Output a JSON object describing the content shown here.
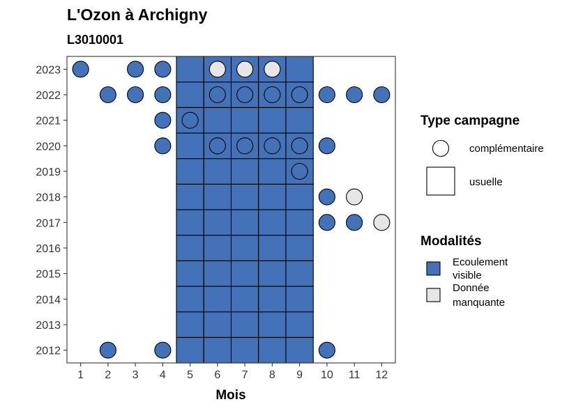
{
  "chart_data": {
    "type": "tile-dot",
    "title": "L'Ozon à Archigny",
    "subtitle": "L3010001",
    "xlabel": "Mois",
    "ylabel": "",
    "x_ticks": [
      1,
      2,
      3,
      4,
      5,
      6,
      7,
      8,
      9,
      10,
      11,
      12
    ],
    "y_ticks": [
      2012,
      2013,
      2014,
      2015,
      2016,
      2017,
      2018,
      2019,
      2020,
      2021,
      2022,
      2023
    ],
    "xlim": [
      0.5,
      12.5
    ],
    "ylim": [
      2011.5,
      2023.5
    ],
    "grid": false,
    "colors": {
      "ecoulement_visible": "#4472b8",
      "donnee_manquante": "#e6e6e6"
    },
    "tiles_usuelle": {
      "months": [
        5,
        6,
        7,
        8,
        9
      ],
      "years": [
        2012,
        2013,
        2014,
        2015,
        2016,
        2017,
        2018,
        2019,
        2020,
        2021,
        2022,
        2023
      ],
      "modalite": "ecoulement_visible"
    },
    "points_complementaire": [
      {
        "year": 2023,
        "month": 1,
        "modalite": "ecoulement_visible"
      },
      {
        "year": 2023,
        "month": 3,
        "modalite": "ecoulement_visible"
      },
      {
        "year": 2023,
        "month": 4,
        "modalite": "ecoulement_visible"
      },
      {
        "year": 2023,
        "month": 6,
        "modalite": "donnee_manquante"
      },
      {
        "year": 2023,
        "month": 7,
        "modalite": "donnee_manquante"
      },
      {
        "year": 2023,
        "month": 8,
        "modalite": "donnee_manquante"
      },
      {
        "year": 2022,
        "month": 2,
        "modalite": "ecoulement_visible"
      },
      {
        "year": 2022,
        "month": 3,
        "modalite": "ecoulement_visible"
      },
      {
        "year": 2022,
        "month": 4,
        "modalite": "ecoulement_visible"
      },
      {
        "year": 2022,
        "month": 6,
        "modalite": "ecoulement_visible"
      },
      {
        "year": 2022,
        "month": 7,
        "modalite": "ecoulement_visible"
      },
      {
        "year": 2022,
        "month": 8,
        "modalite": "ecoulement_visible"
      },
      {
        "year": 2022,
        "month": 9,
        "modalite": "ecoulement_visible"
      },
      {
        "year": 2022,
        "month": 10,
        "modalite": "ecoulement_visible"
      },
      {
        "year": 2022,
        "month": 11,
        "modalite": "ecoulement_visible"
      },
      {
        "year": 2022,
        "month": 12,
        "modalite": "ecoulement_visible"
      },
      {
        "year": 2021,
        "month": 4,
        "modalite": "ecoulement_visible"
      },
      {
        "year": 2021,
        "month": 5,
        "modalite": "ecoulement_visible"
      },
      {
        "year": 2020,
        "month": 4,
        "modalite": "ecoulement_visible"
      },
      {
        "year": 2020,
        "month": 6,
        "modalite": "ecoulement_visible"
      },
      {
        "year": 2020,
        "month": 7,
        "modalite": "ecoulement_visible"
      },
      {
        "year": 2020,
        "month": 8,
        "modalite": "ecoulement_visible"
      },
      {
        "year": 2020,
        "month": 9,
        "modalite": "ecoulement_visible"
      },
      {
        "year": 2020,
        "month": 10,
        "modalite": "ecoulement_visible"
      },
      {
        "year": 2019,
        "month": 9,
        "modalite": "ecoulement_visible"
      },
      {
        "year": 2018,
        "month": 10,
        "modalite": "ecoulement_visible"
      },
      {
        "year": 2018,
        "month": 11,
        "modalite": "donnee_manquante"
      },
      {
        "year": 2017,
        "month": 10,
        "modalite": "ecoulement_visible"
      },
      {
        "year": 2017,
        "month": 11,
        "modalite": "ecoulement_visible"
      },
      {
        "year": 2017,
        "month": 12,
        "modalite": "donnee_manquante"
      },
      {
        "year": 2012,
        "month": 2,
        "modalite": "ecoulement_visible"
      },
      {
        "year": 2012,
        "month": 4,
        "modalite": "ecoulement_visible"
      },
      {
        "year": 2012,
        "month": 10,
        "modalite": "ecoulement_visible"
      }
    ],
    "legend_type_campagne": {
      "title": "Type campagne",
      "items": [
        {
          "shape": "circle",
          "label": "complémentaire"
        },
        {
          "shape": "square",
          "label": "usuelle"
        }
      ]
    },
    "legend_modalites": {
      "title": "Modalités",
      "items": [
        {
          "key": "ecoulement_visible",
          "label_lines": [
            "Ecoulement",
            "visible"
          ]
        },
        {
          "key": "donnee_manquante",
          "label_lines": [
            "Donnée",
            "manquante"
          ]
        }
      ]
    },
    "legend_placement": "right"
  }
}
